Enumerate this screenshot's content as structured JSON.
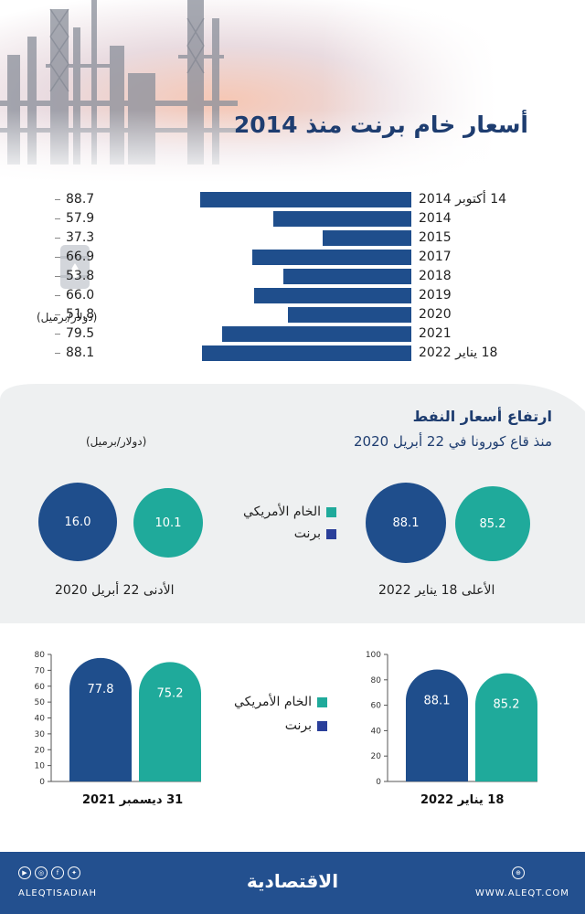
{
  "header": {
    "title": "أسعار خام برنت منذ 2014"
  },
  "section1": {
    "unit": "(دولار/برميل)",
    "icon": "oil-barrel-icon"
  },
  "section2": {
    "title": "ارتفاع أسعار النفط",
    "subtitle": "منذ قاع كورونا في 22 أبريل 2020",
    "unit": "(دولار/برميل)",
    "legend": {
      "wti": "الخام الأمريكي",
      "brent": "برنت"
    },
    "high_caption": "الأعلى 18 يناير 2022",
    "low_caption": "الأدنى 22 أبريل 2020",
    "high": {
      "brent": "88.1",
      "wti": "85.2"
    },
    "low": {
      "brent": "16.0",
      "wti": "10.1"
    }
  },
  "section3": {
    "legend": {
      "wti": "الخام الأمريكي",
      "brent": "برنت"
    },
    "left_caption": "31   ديسمبر 2021",
    "right_caption": "18   يناير 2022"
  },
  "footer": {
    "brand": "الاقتصادية",
    "handle": "ALEQTISADIAH",
    "url": "WWW.ALEQT.COM"
  },
  "colors": {
    "brent": "#1f4e8c",
    "wti": "#1faa9b",
    "navy": "#23508f"
  },
  "chart_data": [
    {
      "type": "bar",
      "orientation": "horizontal",
      "title": "أسعار خام برنت منذ 2014",
      "ylabel": "(دولار/برميل)",
      "categories": [
        "14 أكتوبر 2014",
        "2014",
        "2015",
        "2017",
        "2018",
        "2019",
        "2020",
        "2021",
        "18 يناير 2022"
      ],
      "values": [
        88.7,
        57.9,
        37.3,
        66.9,
        53.8,
        66.0,
        51.8,
        79.5,
        88.1
      ],
      "value_labels": [
        "88.7",
        "57.9",
        "37.3",
        "66.9",
        "53.8",
        "66.0",
        "51.8",
        "79.5",
        "88.1"
      ],
      "xlim": [
        0,
        100
      ]
    },
    {
      "type": "bar",
      "title": "31 ديسمبر 2021",
      "categories": [
        "برنت",
        "الخام الأمريكي"
      ],
      "values": [
        77.8,
        75.2
      ],
      "value_labels": [
        "77.8",
        "75.2"
      ],
      "ylim": [
        0,
        80
      ],
      "yticks": [
        "80",
        "70",
        "60",
        "50",
        "40",
        "30",
        "20",
        "10",
        "0"
      ]
    },
    {
      "type": "bar",
      "title": "18 يناير 2022",
      "categories": [
        "برنت",
        "الخام الأمريكي"
      ],
      "values": [
        88.1,
        85.2
      ],
      "value_labels": [
        "88.1",
        "85.2"
      ],
      "ylim": [
        0,
        100
      ],
      "yticks": [
        "100",
        "80",
        "60",
        "40",
        "20",
        "0"
      ]
    }
  ]
}
